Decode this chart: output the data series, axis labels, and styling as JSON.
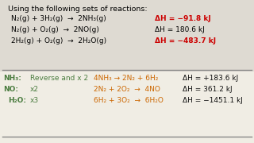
{
  "bg_color": "#f0ede4",
  "top_bg": "#dbd8cf",
  "header": "Using the following sets of reactions:",
  "header_color": "#000000",
  "header_fontsize": 6.8,
  "line1_eq": "N₂(g) + 3H₂(g)  →  2NH₃(g)",
  "line1_dh": "ΔH = −91.8 kJ",
  "line1_eq_color": "#000000",
  "line1_dh_color": "#cc0000",
  "line2_eq": "N₂(g) + O₂(g)  →  2NO(g)",
  "line2_dh": "ΔH = 180.6 kJ",
  "line2_eq_color": "#000000",
  "line2_dh_color": "#000000",
  "line3_eq": "2H₂(g) + O₂(g)  →  2H₂O(g)",
  "line3_dh": "ΔH = −483.7 kJ",
  "line3_eq_color": "#000000",
  "line3_dh_color": "#cc0000",
  "bot_label1": "NH₃:",
  "bot_mod1": "Reverse and x 2",
  "bot_eq1": "4NH₃ → 2N₂ + 6H₂",
  "bot_dh1": "ΔH = +183.6 kJ",
  "bot_label2": "NO:",
  "bot_mod2": "x2",
  "bot_eq2": "2N₂ + 2O₂  →  4NO",
  "bot_dh2": "ΔH = 361.2 kJ",
  "bot_label3": "H₂O:",
  "bot_mod3": "x3",
  "bot_eq3": "6H₂ + 3O₂  →  6H₂O",
  "bot_dh3": "ΔH = −1451.1 kJ",
  "green": "#4a7c3f",
  "orange": "#cc6600",
  "black": "#111111",
  "red": "#cc0000",
  "line_color": "#888888",
  "fs": 6.5
}
